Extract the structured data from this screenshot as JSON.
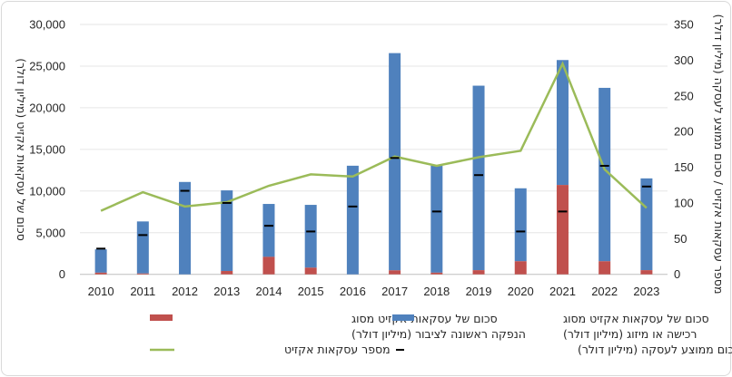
{
  "chart_data": {
    "type": "bar",
    "stacked": true,
    "categories": [
      "2010",
      "2011",
      "2012",
      "2013",
      "2014",
      "2015",
      "2016",
      "2017",
      "2018",
      "2019",
      "2020",
      "2021",
      "2022",
      "2023"
    ],
    "ylabel_left": "סכום של עסקאות אקזיט (מיליון דולר)",
    "ylabel_right": "מספר עסקאות אקזיט / סכום ממוצע לעסקה (מיליון דולר)",
    "ylim_left": [
      0,
      30000
    ],
    "ylim_right": [
      0,
      350
    ],
    "yticks_left": [
      "0",
      "5,000",
      "10,000",
      "15,000",
      "20,000",
      "25,000",
      "30,000"
    ],
    "yticks_right": [
      "0",
      "50",
      "100",
      "150",
      "200",
      "250",
      "300",
      "350"
    ],
    "grid": true,
    "legend_position": "bottom",
    "series": [
      {
        "name": "סכום של עסקאות אקזיט מסוג הנפקה ראשונה לציבור (מיליון דולר)",
        "legend_lines": [
          "סכום של עסקאות אקזיט מסוג",
          "הנפקה ראשונה לציבור (מיליון דולר)"
        ],
        "kind": "bar",
        "axis": "left",
        "color": "#c0504d",
        "values": [
          200,
          100,
          0,
          400,
          2100,
          800,
          0,
          480,
          200,
          500,
          1570,
          10730,
          1570,
          500
        ]
      },
      {
        "name": "סכום של עסקאות אקזיט מסוג רכישה או מיזוג (מיליון דולר)",
        "legend_lines": [
          "סכום של עסקאות אקזיט מסוג",
          "רכישה או מיזוג (מיליון דולר)"
        ],
        "kind": "bar",
        "axis": "left",
        "color": "#4f81bd",
        "values": [
          2800,
          6250,
          11090,
          9680,
          6350,
          7540,
          13040,
          26080,
          12840,
          22150,
          8760,
          15000,
          20820,
          11020
        ]
      },
      {
        "name": "מספר עסקאות אקזיט",
        "legend_lines": [
          "מספר עסקאות אקזיט"
        ],
        "kind": "line",
        "axis": "right",
        "color": "#9bbb59",
        "values": [
          89,
          115,
          95,
          101,
          124,
          140,
          137,
          165,
          152,
          164,
          173,
          295,
          147,
          93
        ]
      },
      {
        "name": "סכום ממוצע לעסקה (מיליון דולר)",
        "legend_lines": [
          "סכום ממוצע לעסקה (מיליון דולר)"
        ],
        "kind": "marker-dash",
        "axis": "right",
        "color": "#000000",
        "values": [
          36,
          55,
          117,
          100,
          68,
          60,
          95,
          163,
          88,
          139,
          60,
          88,
          152,
          123
        ]
      }
    ]
  }
}
